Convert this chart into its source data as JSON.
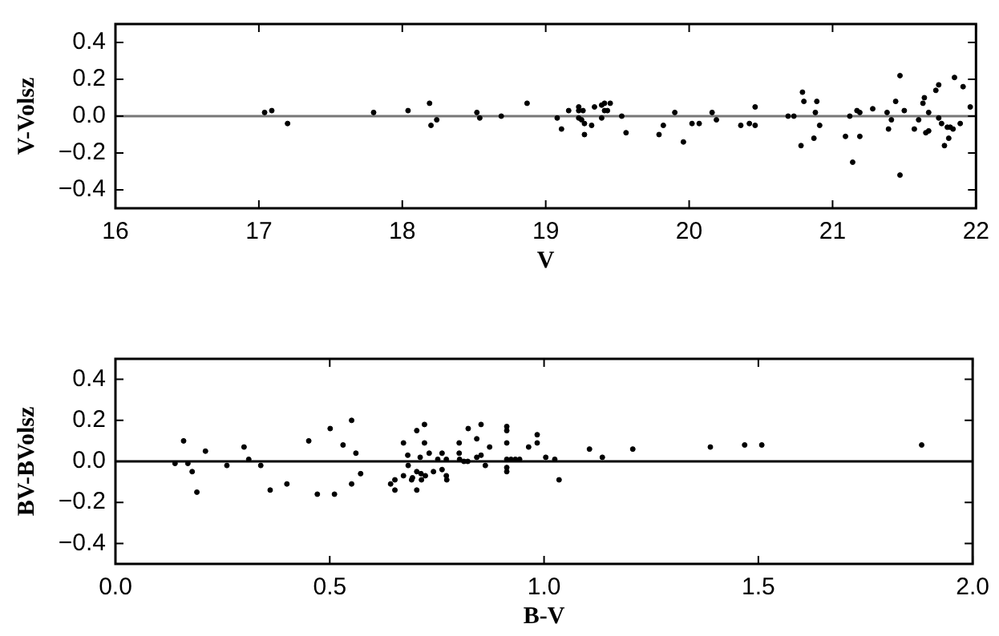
{
  "chart_data": [
    {
      "type": "scatter",
      "xlabel": "V",
      "ylabel": "V-Volsz",
      "xlim": [
        16,
        22
      ],
      "xticks": [
        16,
        17,
        18,
        19,
        20,
        21,
        22
      ],
      "ylim": [
        -0.5,
        0.5
      ],
      "yticks": [
        {
          "value": -0.4,
          "label": "−0.4"
        },
        {
          "value": -0.2,
          "label": "−0.2"
        },
        {
          "value": 0,
          "label": "0.0"
        },
        {
          "value": 0.2,
          "label": "0.2"
        },
        {
          "value": 0.4,
          "label": "0.4"
        }
      ],
      "grid": false,
      "legend": false,
      "marker": "circle",
      "ref_lines": [
        {
          "axis": "y",
          "value": 0,
          "color": "#777777"
        }
      ],
      "series": [
        {
          "color": "#000000",
          "x": [
            17.04,
            17.09,
            17.2,
            17.8,
            18.04,
            18.19,
            18.2,
            18.24,
            18.52,
            18.54,
            18.69,
            18.87,
            19.08,
            19.11,
            19.16,
            19.23,
            19.23,
            19.26,
            19.23,
            19.25,
            19.27,
            19.27,
            19.32,
            19.34,
            19.39,
            19.39,
            19.41,
            19.41,
            19.43,
            19.45,
            19.53,
            19.56,
            19.79,
            19.82,
            19.9,
            19.96,
            20.02,
            20.07,
            20.16,
            20.19,
            20.36,
            20.42,
            20.46,
            20.46,
            20.69,
            20.73,
            20.78,
            20.79,
            20.8,
            20.87,
            20.88,
            20.89,
            20.91,
            21.09,
            21.12,
            21.14,
            21.17,
            21.19,
            21.19,
            21.28,
            21.38,
            21.39,
            21.41,
            21.44,
            21.47,
            21.47,
            21.5,
            21.57,
            21.6,
            21.63,
            21.64,
            21.65,
            21.67,
            21.67,
            21.72,
            21.74,
            21.74,
            21.76,
            21.78,
            21.8,
            21.81,
            21.82,
            21.84,
            21.85,
            21.89,
            21.91,
            21.96
          ],
          "values": [
            0.02,
            0.03,
            -0.04,
            0.02,
            0.03,
            0.07,
            -0.05,
            -0.02,
            0.02,
            -0.01,
            0.0,
            0.07,
            -0.01,
            -0.07,
            0.03,
            0.05,
            0.03,
            0.03,
            -0.01,
            -0.02,
            -0.04,
            -0.1,
            -0.05,
            0.05,
            0.06,
            -0.01,
            0.07,
            0.03,
            0.03,
            0.07,
            0.0,
            -0.09,
            -0.1,
            -0.05,
            0.02,
            -0.14,
            -0.04,
            -0.04,
            0.02,
            -0.02,
            -0.05,
            -0.04,
            -0.05,
            0.05,
            0.0,
            0.0,
            -0.16,
            0.13,
            0.08,
            -0.12,
            0.02,
            0.08,
            -0.05,
            -0.11,
            0.0,
            -0.25,
            0.03,
            -0.11,
            0.02,
            0.04,
            0.02,
            -0.07,
            -0.02,
            0.08,
            0.22,
            -0.32,
            0.03,
            -0.07,
            -0.02,
            0.07,
            0.1,
            -0.09,
            0.02,
            -0.08,
            0.14,
            0.17,
            -0.01,
            -0.04,
            -0.16,
            -0.06,
            -0.12,
            -0.06,
            -0.07,
            0.21,
            -0.04,
            0.16,
            0.05
          ]
        }
      ]
    },
    {
      "type": "scatter",
      "xlabel": "B-V",
      "ylabel": "BV-BVolsz",
      "xlim": [
        0,
        2
      ],
      "xticks": [
        {
          "value": 0,
          "label": "0.0"
        },
        {
          "value": 0.5,
          "label": "0.5"
        },
        {
          "value": 1,
          "label": "1.0"
        },
        {
          "value": 1.5,
          "label": "1.5"
        },
        {
          "value": 2,
          "label": "2.0"
        }
      ],
      "ylim": [
        -0.5,
        0.5
      ],
      "yticks": [
        {
          "value": -0.4,
          "label": "−0.4"
        },
        {
          "value": -0.2,
          "label": "−0.2"
        },
        {
          "value": 0,
          "label": "0.0"
        },
        {
          "value": 0.2,
          "label": "0.2"
        },
        {
          "value": 0.4,
          "label": "0.4"
        }
      ],
      "grid": false,
      "legend": false,
      "marker": "circle",
      "ref_lines": [
        {
          "axis": "y",
          "value": 0,
          "color": "#000000"
        }
      ],
      "series": [
        {
          "color": "#000000",
          "x": [
            0.139,
            0.159,
            0.169,
            0.179,
            0.19,
            0.21,
            0.26,
            0.3,
            0.311,
            0.339,
            0.361,
            0.4,
            0.451,
            0.471,
            0.501,
            0.511,
            0.531,
            0.551,
            0.551,
            0.561,
            0.572,
            0.642,
            0.652,
            0.652,
            0.672,
            0.672,
            0.682,
            0.683,
            0.691,
            0.693,
            0.703,
            0.703,
            0.703,
            0.711,
            0.713,
            0.714,
            0.721,
            0.721,
            0.723,
            0.732,
            0.742,
            0.752,
            0.762,
            0.762,
            0.772,
            0.772,
            0.773,
            0.802,
            0.802,
            0.803,
            0.813,
            0.823,
            0.822,
            0.843,
            0.843,
            0.853,
            0.853,
            0.863,
            0.873,
            0.913,
            0.913,
            0.913,
            0.913,
            0.913,
            0.913,
            0.923,
            0.933,
            0.943,
            0.964,
            0.984,
            0.984,
            1.004,
            1.025,
            1.035,
            1.106,
            1.136,
            1.207,
            1.388,
            1.468,
            1.508,
            1.881
          ],
          "values": [
            -0.01,
            0.1,
            -0.01,
            -0.05,
            -0.15,
            0.05,
            -0.02,
            0.07,
            0.01,
            -0.02,
            -0.14,
            -0.11,
            0.1,
            -0.16,
            0.16,
            -0.16,
            0.08,
            0.2,
            -0.11,
            0.04,
            -0.06,
            -0.11,
            -0.14,
            -0.09,
            0.09,
            -0.07,
            0.03,
            -0.02,
            -0.09,
            -0.08,
            0.15,
            -0.05,
            -0.14,
            0.02,
            -0.06,
            -0.09,
            0.18,
            0.09,
            -0.07,
            0.04,
            -0.05,
            0.01,
            0.04,
            -0.04,
            0.01,
            -0.07,
            -0.09,
            0.09,
            0.04,
            0.01,
            0.0,
            0.16,
            0.0,
            0.11,
            0.02,
            0.18,
            0.03,
            -0.02,
            0.07,
            0.17,
            0.15,
            0.09,
            0.01,
            -0.03,
            -0.05,
            0.01,
            0.01,
            0.01,
            0.07,
            0.13,
            0.09,
            0.02,
            0.01,
            -0.09,
            0.06,
            0.02,
            0.06,
            0.07,
            0.08,
            0.08,
            0.08
          ]
        }
      ]
    }
  ]
}
